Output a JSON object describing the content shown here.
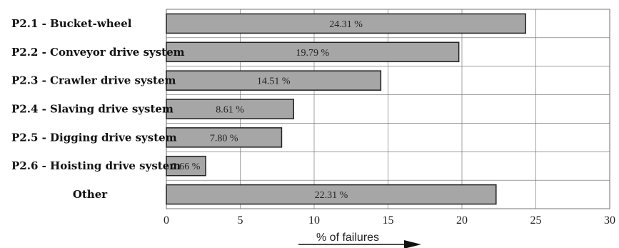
{
  "chart_data": {
    "type": "bar",
    "orientation": "horizontal",
    "categories": [
      "P2.1 - Bucket-wheel",
      "P2.2 - Conveyor drive system",
      "P2.3 - Crawler drive system",
      "P2.4 - Slaving drive system",
      "P2.5 - Digging drive system",
      "P2.6 - Hoisting drive system",
      "Other"
    ],
    "values": [
      24.31,
      19.79,
      14.51,
      8.61,
      7.8,
      2.66,
      22.31
    ],
    "data_labels": [
      "24.31 %",
      "19.79 %",
      "14.51 %",
      "8.61 %",
      "7.80 %",
      "2.66 %",
      "22.31 %"
    ],
    "xlabel": "% of failures",
    "ylabel": "",
    "title": "",
    "xlim": [
      0,
      30
    ],
    "xticks": [
      "0",
      "5",
      "10",
      "15",
      "20",
      "25",
      "30"
    ],
    "grid": true,
    "legend": "none",
    "bar_color": "#a6a6a6",
    "bar_edge_color": "#222222"
  }
}
